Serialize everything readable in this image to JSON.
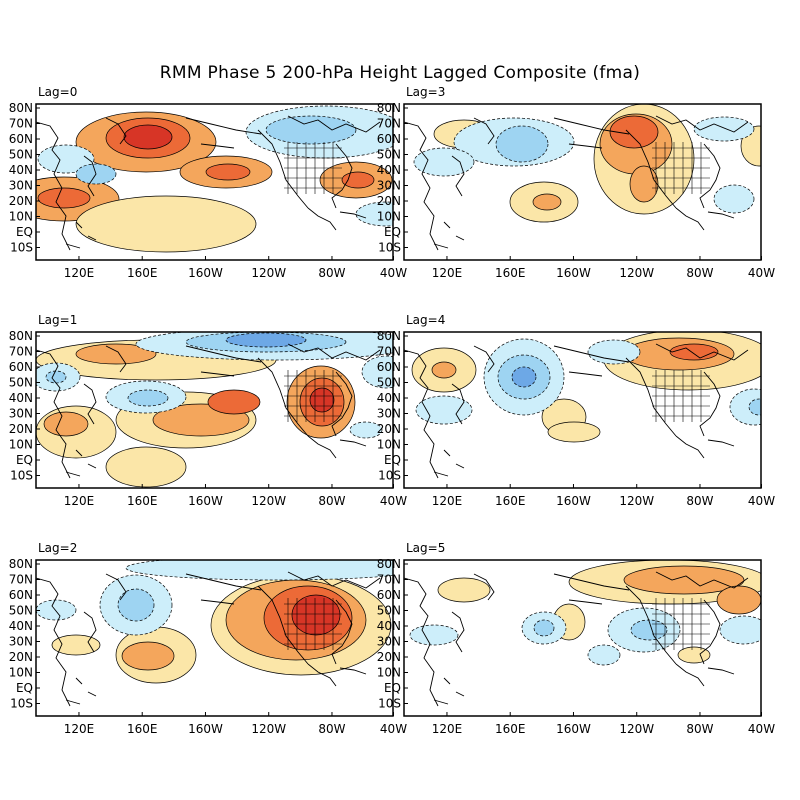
{
  "title": "RMM Phase 5 200-hPa Height Lagged Composite (fma)",
  "lat_labels": [
    "80N",
    "70N",
    "60N",
    "50N",
    "40N",
    "30N",
    "20N",
    "10N",
    "EQ",
    "10S"
  ],
  "lon_labels": [
    "120E",
    "160E",
    "160W",
    "120W",
    "80W",
    "40W"
  ],
  "colors": {
    "pos1": "#fbe6a8",
    "pos2": "#f4a65c",
    "pos3": "#ec6a37",
    "pos4": "#d73526",
    "neg1": "#cdeefa",
    "neg2": "#9ed4f2",
    "neg3": "#6da8e6",
    "neg4": "#4a7fd6",
    "coast": "#000000"
  },
  "panels": [
    {
      "label": "Lag=0"
    },
    {
      "label": "Lag=3"
    },
    {
      "label": "Lag=1"
    },
    {
      "label": "Lag=4"
    },
    {
      "label": "Lag=2"
    },
    {
      "label": "Lag=5"
    }
  ]
}
